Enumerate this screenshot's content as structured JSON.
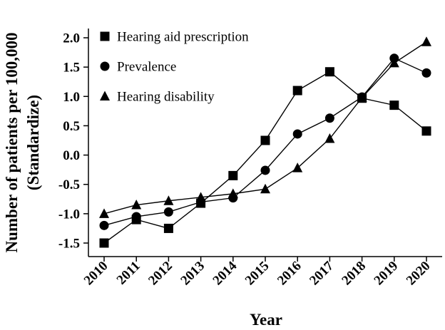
{
  "chart_data": {
    "type": "line",
    "title": "",
    "xlabel": "Year",
    "ylabel_line1": "Number of patients per 100,000",
    "ylabel_line2": "(Standardize)",
    "categories": [
      "2010",
      "2011",
      "2012",
      "2013",
      "2014",
      "2015",
      "2016",
      "2017",
      "2018",
      "2019",
      "2020"
    ],
    "yticks": [
      "2.0",
      "1.5",
      "1.0",
      "0.5",
      "0.0",
      "-0.5",
      "-1.0",
      "-1.5"
    ],
    "ylim": [
      -1.65,
      2.1
    ],
    "legend_position": "top-left",
    "grid": false,
    "series": [
      {
        "name": "Hearing aid prescription",
        "marker": "square",
        "values": [
          -1.5,
          -1.1,
          -1.25,
          -0.82,
          -0.35,
          0.25,
          1.1,
          1.42,
          0.97,
          0.85,
          0.41
        ]
      },
      {
        "name": "Prevalence",
        "marker": "circle",
        "values": [
          -1.2,
          -1.05,
          -0.97,
          -0.8,
          -0.73,
          -0.26,
          0.36,
          0.63,
          0.99,
          1.65,
          1.4
        ]
      },
      {
        "name": "Hearing disability",
        "marker": "triangle",
        "values": [
          -1.0,
          -0.85,
          -0.78,
          -0.72,
          -0.66,
          -0.58,
          -0.22,
          0.28,
          0.98,
          1.57,
          1.93
        ]
      }
    ]
  }
}
